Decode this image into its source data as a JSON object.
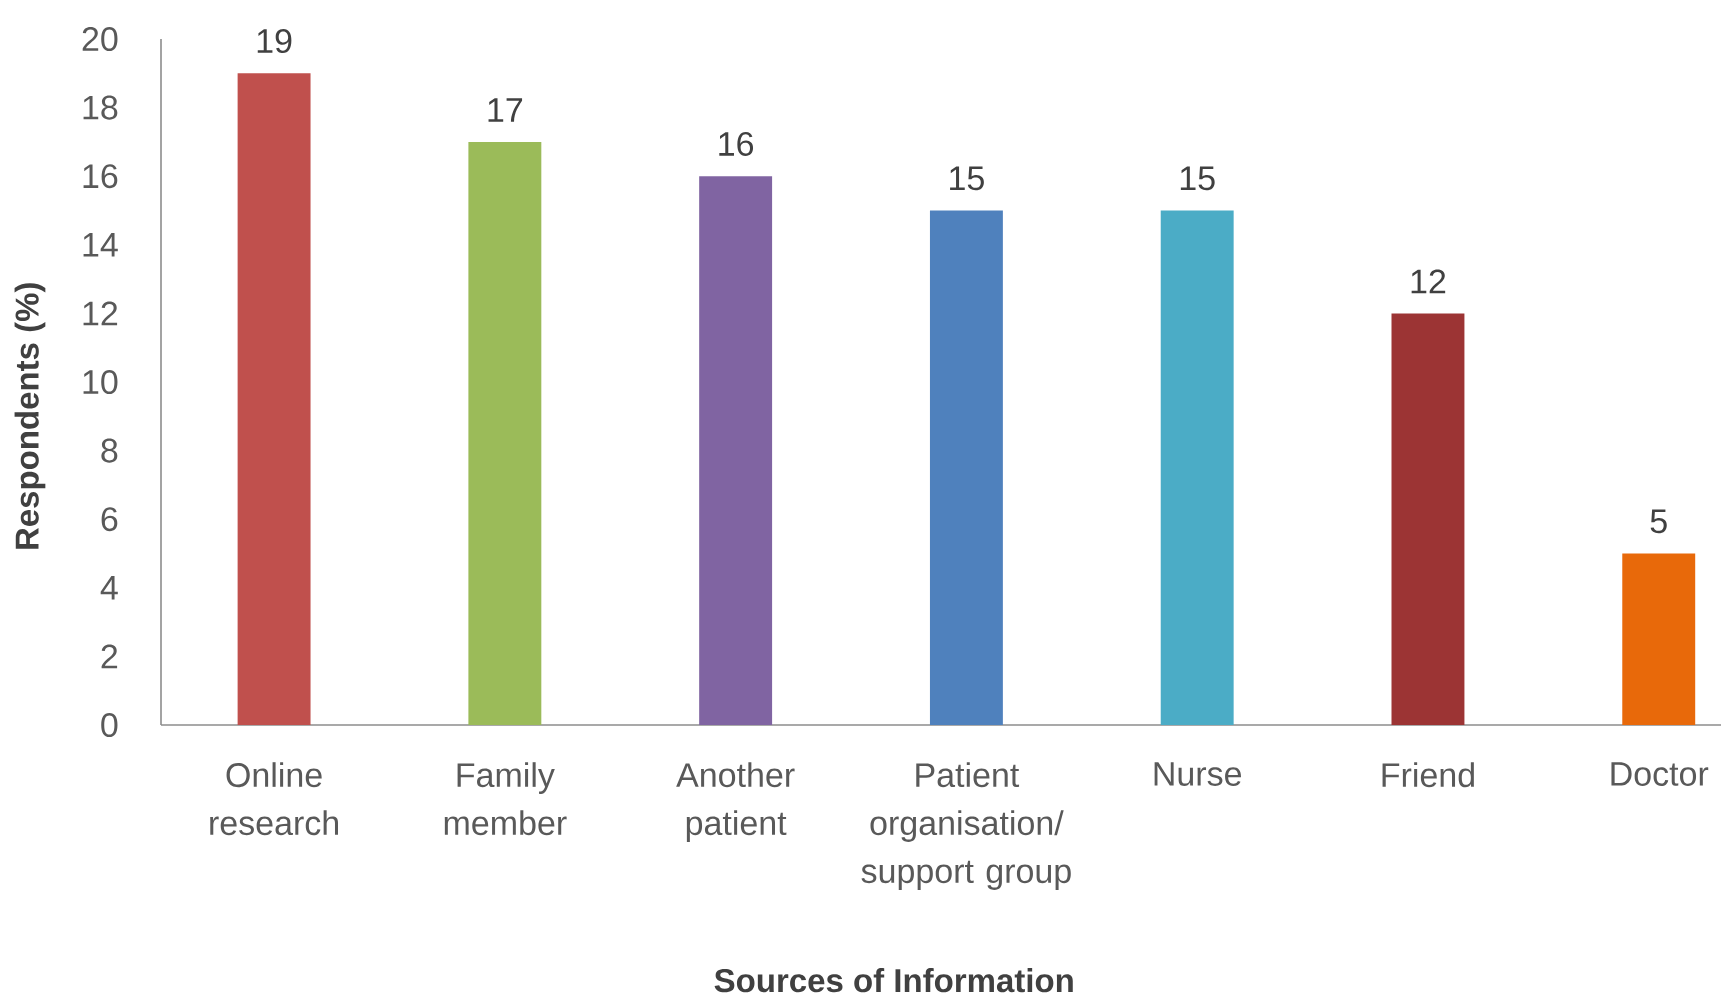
{
  "chart_data": {
    "type": "bar",
    "xlabel": "Sources of Information",
    "ylabel": "Respondents (%)",
    "categories": [
      "Online research",
      "Family member",
      "Another patient",
      "Patient organisation/ support group",
      "Nurse",
      "Friend",
      "Doctor"
    ],
    "values": [
      19,
      17,
      16,
      15,
      15,
      12,
      5
    ],
    "colors": [
      "#c0504d",
      "#9bbb59",
      "#8064a2",
      "#4f81bd",
      "#4bacc6",
      "#9c3434",
      "#e8690a"
    ],
    "ylim": [
      0,
      20
    ],
    "yticks": [
      0,
      2,
      4,
      6,
      8,
      10,
      12,
      14,
      16,
      18,
      20
    ],
    "data_labels": true
  }
}
